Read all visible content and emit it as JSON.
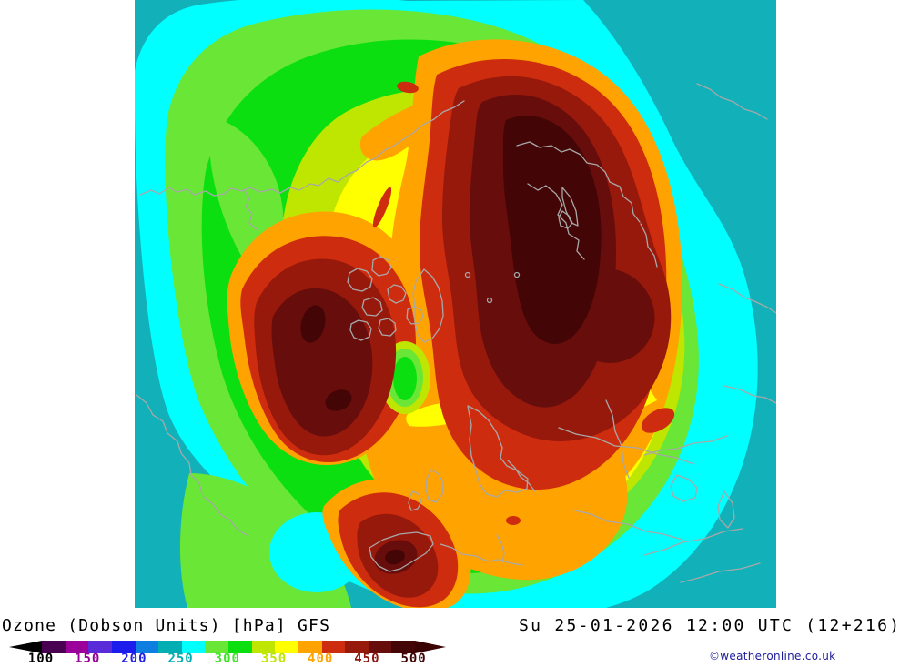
{
  "caption": {
    "product": "Ozone (Dobson Units) [hPa] GFS",
    "valid": "Su 25-01-2026 12:00 UTC (12+216)",
    "credit": "©weatheronline.co.uk",
    "credit_color": "#1b1b9b"
  },
  "colorbar": {
    "tick_labels": [
      "100",
      "150",
      "200",
      "250",
      "300",
      "350",
      "400",
      "450",
      "500"
    ],
    "tick_colors": [
      "#000000",
      "#9b009b",
      "#2222e8",
      "#00aeb4",
      "#44e42e",
      "#bfe600",
      "#ffa300",
      "#8e140c",
      "#400404"
    ],
    "segment_colors": [
      "#4a0050",
      "#9b009b",
      "#5a2bd9",
      "#1c1cec",
      "#0e7ee0",
      "#00aeb4",
      "#00ffff",
      "#69e636",
      "#0cdf10",
      "#bfe600",
      "#ffff00",
      "#ffa300",
      "#ce2c0e",
      "#97190c",
      "#670d0b",
      "#430505"
    ],
    "underflow_color": "#000000",
    "overflow_color": "#3a0404"
  },
  "palette": {
    "teal": "#12b0b9",
    "cyan": "#00ffff",
    "light_green": "#69e636",
    "green": "#0cdf10",
    "yellow_green": "#bfe600",
    "yellow": "#ffff00",
    "orange": "#ffa300",
    "red": "#ce2c0e",
    "brown_red": "#97190c",
    "maroon": "#670d0b",
    "dark_maroon": "#430505",
    "coastline": "#a8a8a8",
    "background": "#ffffff"
  }
}
